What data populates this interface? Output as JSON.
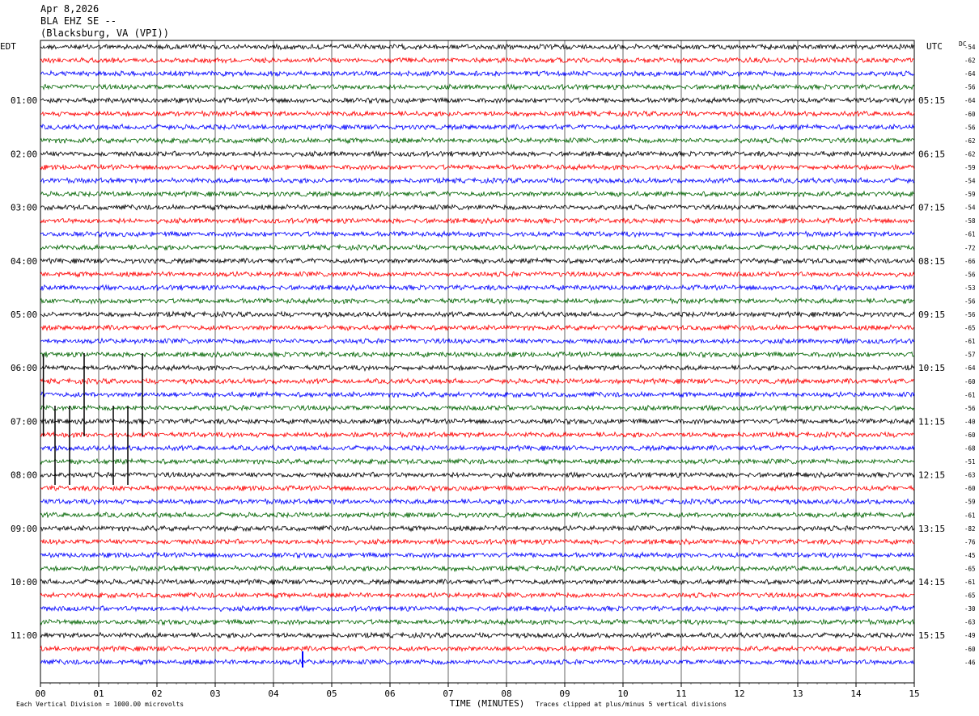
{
  "header": {
    "date": "Apr 8,2026",
    "station": "BLA EHZ SE --",
    "location": "(Blacksburg, VA (VPI))"
  },
  "left_tz": "EDT",
  "right_tz": "UTC",
  "dc_label": "DC",
  "footer": {
    "scale_note": "Each Vertical Division = 1000.00 microvolts",
    "clip_note": "Traces clipped at plus/minus 5 vertical divisions"
  },
  "colors": {
    "black": "#000000",
    "red": "#ff0000",
    "blue": "#0000ff",
    "green": "#006400",
    "grid": "#000000"
  },
  "chart_data": {
    "type": "line",
    "title": "",
    "xlabel": "TIME (MINUTES)",
    "ylabel": "",
    "x_ticks": [
      "00",
      "01",
      "02",
      "03",
      "04",
      "05",
      "06",
      "07",
      "08",
      "09",
      "10",
      "11",
      "12",
      "13",
      "14",
      "15"
    ],
    "xlim": [
      0,
      15
    ],
    "grid": true,
    "trace_colors": [
      "black",
      "red",
      "blue",
      "green"
    ],
    "left_hour_labels": [
      "01:00",
      "02:00",
      "03:00",
      "04:00",
      "05:00",
      "06:00",
      "07:00",
      "08:00",
      "09:00",
      "10:00",
      "11:00"
    ],
    "right_hour_labels": [
      "05:15",
      "06:15",
      "07:15",
      "08:15",
      "09:15",
      "10:15",
      "11:15",
      "12:15",
      "13:15",
      "14:15",
      "15:15"
    ],
    "dc_offsets": [
      "-54",
      "-62",
      "-64",
      "-56",
      "-64",
      "-60",
      "-56",
      "-62",
      "-62",
      "-59",
      "-54",
      "-59",
      "-54",
      "-58",
      "-61",
      "-72",
      "-66",
      "-56",
      "-53",
      "-56",
      "-56",
      "-65",
      "-61",
      "-57",
      "-64",
      "-60",
      "-61",
      "-56",
      "-40",
      "-60",
      "-68",
      "-51",
      "-63",
      "-60",
      "-59",
      "-61",
      "-82",
      "-76",
      "-45",
      "-65",
      "-61",
      "-65",
      "-30",
      "-63",
      "-49",
      "-60",
      "-46"
    ],
    "traces_count": 47
  }
}
